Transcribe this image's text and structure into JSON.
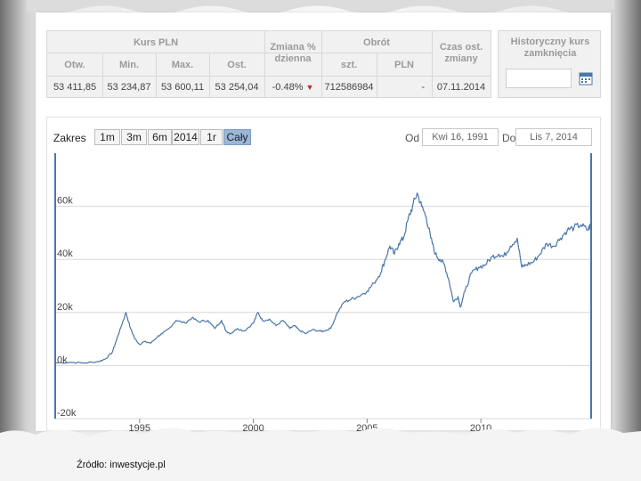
{
  "quote": {
    "header_kurs": "Kurs PLN",
    "header_zmiana": "Zmiana %\ndzienna",
    "header_obrot": "Obrót",
    "header_czas": "Czas ost.\nzmiany",
    "col_otw": "Otw.",
    "col_min": "Min.",
    "col_max": "Max.",
    "col_ost": "Ost.",
    "col_szt": "szt.",
    "col_pln": "PLN",
    "val_otw": "53 411,85",
    "val_min": "53 234,87",
    "val_max": "53 600,11",
    "val_ost": "53 254,04",
    "val_zmiana": "-0.48%",
    "val_szt": "712586984",
    "val_pln": "-",
    "val_czas": "07.11.2014"
  },
  "historical": {
    "title": "Historyczny kurs zamknięcia",
    "input_value": "",
    "calendar_icon": "calendar-icon"
  },
  "range": {
    "label": "Zakres",
    "buttons": [
      "1m",
      "3m",
      "6m",
      "2014",
      "1r",
      "Cały"
    ],
    "active_index": 5,
    "from_label": "Od",
    "from_value": "Kwi 16, 1991",
    "to_label": "Do",
    "to_value": "Lis 7, 2014"
  },
  "colors": {
    "line": "#4a76a8",
    "grid": "#d8d8d8",
    "axis": "#4a76a8",
    "active_button": "#9ab7d8",
    "down": "#cc2222"
  },
  "source": "Źródło: inwestycje.pl",
  "chart_data": {
    "type": "line",
    "title": "",
    "xlabel": "",
    "ylabel": "",
    "xlim": [
      1991.29,
      2014.85
    ],
    "ylim": [
      -20000,
      80000
    ],
    "yticks": [
      -20000,
      0,
      20000,
      40000,
      60000
    ],
    "ytick_labels": [
      "-20k",
      "0k",
      "20k",
      "40k",
      "60k"
    ],
    "xticks": [
      1995,
      2000,
      2005,
      2010
    ],
    "xtick_labels": [
      "1995",
      "2000",
      "2005",
      "2010"
    ],
    "grid": true,
    "series": [
      {
        "x": [
          1991.29,
          1992.0,
          1992.6,
          1993.2,
          1993.5,
          1993.8,
          1994.0,
          1994.2,
          1994.4,
          1994.6,
          1994.8,
          1995.0,
          1995.2,
          1995.5,
          1995.8,
          1996.0,
          1996.3,
          1996.6,
          1997.0,
          1997.3,
          1997.6,
          1998.0,
          1998.3,
          1998.6,
          1998.8,
          1999.0,
          1999.3,
          1999.6,
          2000.0,
          2000.2,
          2000.4,
          2000.7,
          2001.0,
          2001.3,
          2001.6,
          2001.8,
          2002.0,
          2002.3,
          2002.6,
          2002.9,
          2003.1,
          2003.4,
          2003.7,
          2004.0,
          2004.3,
          2004.6,
          2005.0,
          2005.3,
          2005.6,
          2005.8,
          2006.0,
          2006.2,
          2006.4,
          2006.6,
          2006.8,
          2007.0,
          2007.2,
          2007.4,
          2007.6,
          2007.8,
          2008.0,
          2008.2,
          2008.4,
          2008.6,
          2008.8,
          2009.0,
          2009.1,
          2009.3,
          2009.6,
          2009.9,
          2010.2,
          2010.5,
          2010.8,
          2011.0,
          2011.3,
          2011.6,
          2011.8,
          2012.0,
          2012.3,
          2012.6,
          2012.9,
          2013.2,
          2013.5,
          2013.8,
          2014.1,
          2014.4,
          2014.7,
          2014.85
        ],
        "y": [
          1000,
          1200,
          1000,
          1500,
          2500,
          5000,
          10000,
          15000,
          20000,
          14000,
          10000,
          8000,
          9000,
          8500,
          11000,
          12000,
          14000,
          17000,
          16000,
          18000,
          16500,
          17000,
          14000,
          17000,
          13000,
          12000,
          14000,
          13000,
          16000,
          20000,
          17000,
          17500,
          15000,
          17000,
          14000,
          15000,
          13500,
          12000,
          13500,
          13000,
          13000,
          14000,
          20000,
          24000,
          25000,
          26000,
          28000,
          31000,
          35000,
          40000,
          45000,
          42000,
          46000,
          48000,
          55000,
          60000,
          65000,
          60000,
          56000,
          48000,
          42000,
          40000,
          38000,
          32000,
          24000,
          26000,
          22000,
          28000,
          35000,
          37000,
          38000,
          41000,
          42000,
          41000,
          45000,
          48000,
          37000,
          38000,
          39000,
          42000,
          46000,
          45000,
          48000,
          51000,
          52000,
          53000,
          51000,
          53254
        ]
      }
    ]
  }
}
